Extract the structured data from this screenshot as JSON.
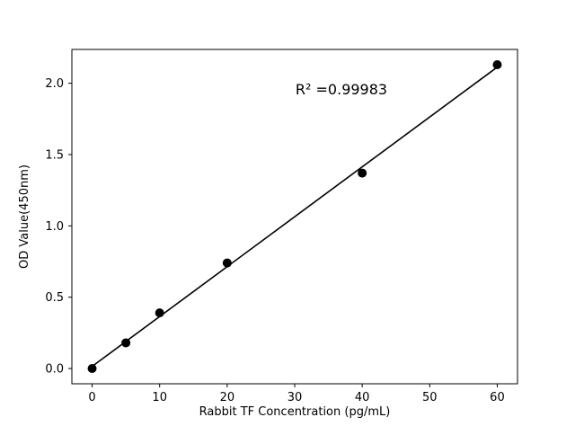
{
  "chart_data": {
    "type": "scatter",
    "title": "",
    "xlabel": "Rabbit TF Concentration (pg/mL)",
    "ylabel": "OD Value(450nm)",
    "annotation": "R² =0.99983",
    "r_squared": 0.99983,
    "x": [
      0,
      5,
      10,
      20,
      40,
      60
    ],
    "y": [
      0.0,
      0.18,
      0.39,
      0.74,
      1.37,
      2.13
    ],
    "fit": "linear",
    "xlim": [
      -3,
      63
    ],
    "ylim": [
      -0.107,
      2.237
    ],
    "xticks": [
      0,
      10,
      20,
      30,
      40,
      50,
      60
    ],
    "xtick_labels": [
      "0",
      "10",
      "20",
      "30",
      "40",
      "50",
      "60"
    ],
    "ytick_values": [
      0.0,
      0.5,
      1.0,
      1.5,
      2.0
    ],
    "ytick_labels": [
      "0.0",
      "0.5",
      "1.0",
      "1.5",
      "2.0"
    ],
    "grid": false,
    "legend": "none",
    "colors": {
      "point": "#000000",
      "line": "#000000",
      "axis": "#000000",
      "background": "#ffffff"
    }
  }
}
